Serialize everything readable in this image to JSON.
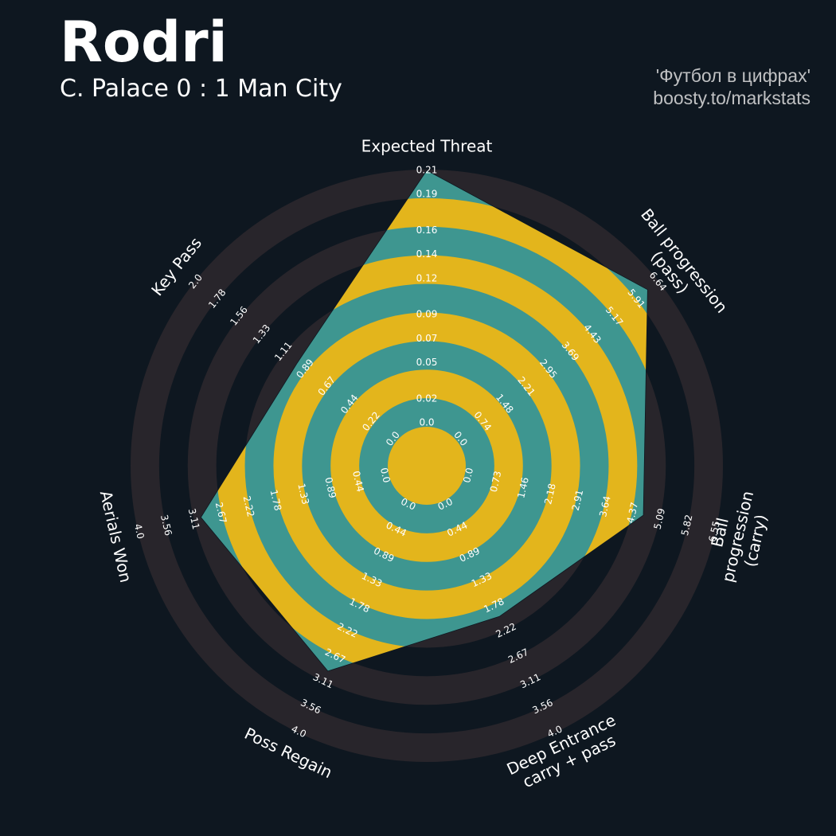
{
  "chart_data": {
    "type": "radar",
    "title": "Rodri",
    "subtitle": "C. Palace 0 : 1 Man City",
    "credits": [
      "'Футбол в цифрах'",
      "boosty.to/markstats"
    ],
    "categories": [
      "Expected Threat",
      "Ball progression (pass)",
      "Ball progression (carry)",
      "Deep Entrance\ncarry + pass",
      "Poss Regain",
      "Aerials Won",
      "Key Pass"
    ],
    "values": [
      0.21,
      6.3,
      4.65,
      1.97,
      2.93,
      2.99,
      0.97
    ],
    "axis_lims": [
      [
        0,
        0.21
      ],
      [
        0,
        6.64
      ],
      [
        0,
        6.55
      ],
      [
        0,
        4
      ],
      [
        0,
        4
      ],
      [
        0,
        4
      ],
      [
        0,
        2
      ]
    ],
    "axis_ticks": [
      [
        {
          "value": 0,
          "label": "0.0"
        },
        0.02,
        0.05,
        0.07,
        0.09,
        0.12,
        0.14,
        0.16,
        0.19,
        0.21
      ],
      [
        {
          "value": 0,
          "label": "0.0"
        },
        0.74,
        1.48,
        2.21,
        2.95,
        3.69,
        4.43,
        5.17,
        5.91,
        6.64
      ],
      [
        {
          "value": 0,
          "label": "0.0"
        },
        0.73,
        1.46,
        2.18,
        2.91,
        3.64,
        4.37,
        5.09,
        5.82,
        6.55
      ],
      [
        {
          "value": 0,
          "label": "0.0"
        },
        0.44,
        0.89,
        1.33,
        1.78,
        2.22,
        2.67,
        3.11,
        3.56,
        {
          "value": 4,
          "label": "4.0"
        }
      ],
      [
        {
          "value": 0,
          "label": "0.0"
        },
        0.44,
        0.89,
        1.33,
        1.78,
        2.22,
        2.67,
        3.11,
        3.56,
        {
          "value": 4,
          "label": "4.0"
        }
      ],
      [
        {
          "value": 0,
          "label": "0.0"
        },
        0.44,
        0.89,
        1.33,
        1.78,
        2.22,
        2.67,
        3.11,
        3.56,
        {
          "value": 4,
          "label": "4.0"
        }
      ],
      [
        {
          "value": 0,
          "label": "0.0"
        },
        0.22,
        0.44,
        0.67,
        0.89,
        1.11,
        1.33,
        1.56,
        1.78,
        {
          "value": 2,
          "label": "2.0"
        }
      ]
    ],
    "color": "#3e9690",
    "ring_color": "#e3b51c"
  }
}
